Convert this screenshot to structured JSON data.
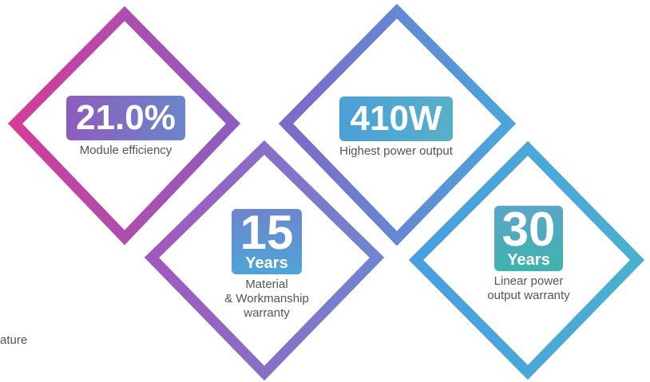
{
  "colors": {
    "magenta": "#d23c9a",
    "purple": "#8c5ec0",
    "blue": "#4aa6dc",
    "teal": "#3fb3ad",
    "text": "#555555"
  },
  "stats": {
    "efficiency": {
      "value": "21.0%",
      "label": "Module efficiency"
    },
    "power": {
      "value": "410W",
      "label": "Highest power output"
    },
    "material": {
      "value": "15",
      "unit": "Years",
      "label_lines": [
        "Material",
        "& Workmanship",
        "warranty"
      ]
    },
    "linear": {
      "value": "30",
      "unit": "Years",
      "label_lines": [
        "Linear power",
        "output warranty"
      ]
    }
  },
  "clipped_text": "ature"
}
